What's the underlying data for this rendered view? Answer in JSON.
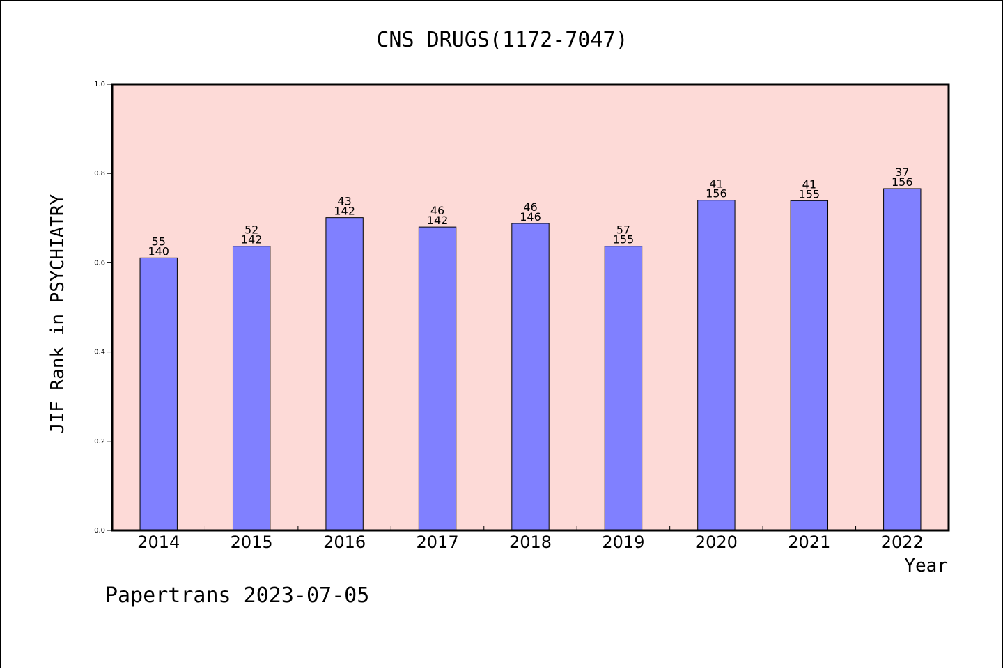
{
  "footer": "Papertrans 2023-07-05",
  "colors": {
    "plot_background": "#fddad7",
    "bar_fill": "#8080ff",
    "bar_stroke": "#000000"
  },
  "chart_data": {
    "type": "bar",
    "title": "CNS DRUGS(1172-7047)",
    "xlabel": "Year",
    "ylabel": "JIF Rank in PSYCHIATRY",
    "ylim": [
      0,
      1.0
    ],
    "yticks": [
      "0.0",
      "0.2",
      "0.4",
      "0.6",
      "0.8",
      "1.0"
    ],
    "grid": false,
    "categories": [
      "2014",
      "2015",
      "2016",
      "2017",
      "2018",
      "2019",
      "2020",
      "2021",
      "2022"
    ],
    "values": [
      0.611,
      0.637,
      0.701,
      0.68,
      0.688,
      0.637,
      0.74,
      0.739,
      0.766
    ],
    "rank": [
      "55",
      "52",
      "43",
      "46",
      "46",
      "57",
      "41",
      "41",
      "37"
    ],
    "total": [
      "140",
      "142",
      "142",
      "142",
      "146",
      "155",
      "156",
      "155",
      "156"
    ]
  }
}
